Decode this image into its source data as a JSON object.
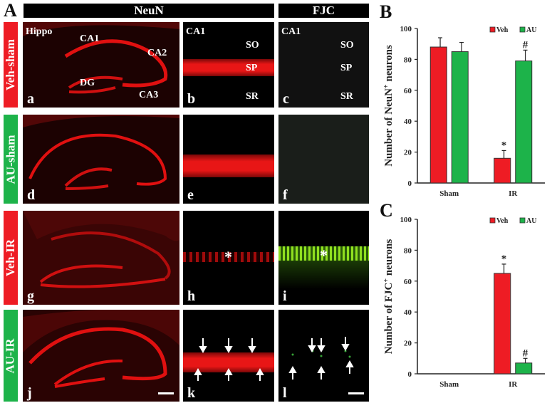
{
  "figure": {
    "panel_A_label": "A",
    "panel_B_label": "B",
    "panel_C_label": "C",
    "column_headers": {
      "neun": "NeuN",
      "fjc": "FJC"
    },
    "rows": [
      {
        "label": "Veh-sham",
        "color": "#ee1c24",
        "panels": [
          "a",
          "b",
          "c"
        ]
      },
      {
        "label": "AU-sham",
        "color": "#1db34a",
        "panels": [
          "d",
          "e",
          "f"
        ]
      },
      {
        "label": "Veh-IR",
        "color": "#ee1c24",
        "panels": [
          "g",
          "h",
          "i"
        ]
      },
      {
        "label": "AU-IR",
        "color": "#1db34a",
        "panels": [
          "j",
          "k",
          "l"
        ]
      }
    ],
    "annotations": {
      "hippo": "Hippo",
      "ca1": "CA1",
      "ca2": "CA2",
      "ca3": "CA3",
      "dg": "DG",
      "so": "SO",
      "sp": "SP",
      "sr": "SR",
      "asterisk": "*"
    }
  },
  "chart_data": [
    {
      "id": "B",
      "type": "bar",
      "title": "",
      "xlabel": "",
      "ylabel": "Number of NeuN+ neurons",
      "categories": [
        "Sham",
        "IR"
      ],
      "series": [
        {
          "name": "Veh",
          "color": "#ee1c24",
          "values": [
            88,
            16
          ],
          "errors": [
            6,
            5
          ]
        },
        {
          "name": "AU",
          "color": "#1db34a",
          "values": [
            85,
            79
          ],
          "errors": [
            6,
            7
          ]
        }
      ],
      "annotations": [
        {
          "category": "IR",
          "series": "Veh",
          "text": "*"
        },
        {
          "category": "IR",
          "series": "AU",
          "text": "#"
        }
      ],
      "ylim": [
        0,
        100
      ],
      "yticks": [
        0,
        20,
        40,
        60,
        80,
        100
      ],
      "grid": false,
      "legend_position": "top-right"
    },
    {
      "id": "C",
      "type": "bar",
      "title": "",
      "xlabel": "",
      "ylabel": "Number of FJC+ neurons",
      "categories": [
        "Sham",
        "IR"
      ],
      "series": [
        {
          "name": "Veh",
          "color": "#ee1c24",
          "values": [
            0,
            65
          ],
          "errors": [
            0,
            6
          ]
        },
        {
          "name": "AU",
          "color": "#1db34a",
          "values": [
            0,
            7
          ],
          "errors": [
            0,
            3
          ]
        }
      ],
      "annotations": [
        {
          "category": "IR",
          "series": "Veh",
          "text": "*"
        },
        {
          "category": "IR",
          "series": "AU",
          "text": "#"
        }
      ],
      "ylim": [
        0,
        100
      ],
      "yticks": [
        0,
        20,
        40,
        60,
        80,
        100
      ],
      "grid": false,
      "legend_position": "top-right"
    }
  ]
}
